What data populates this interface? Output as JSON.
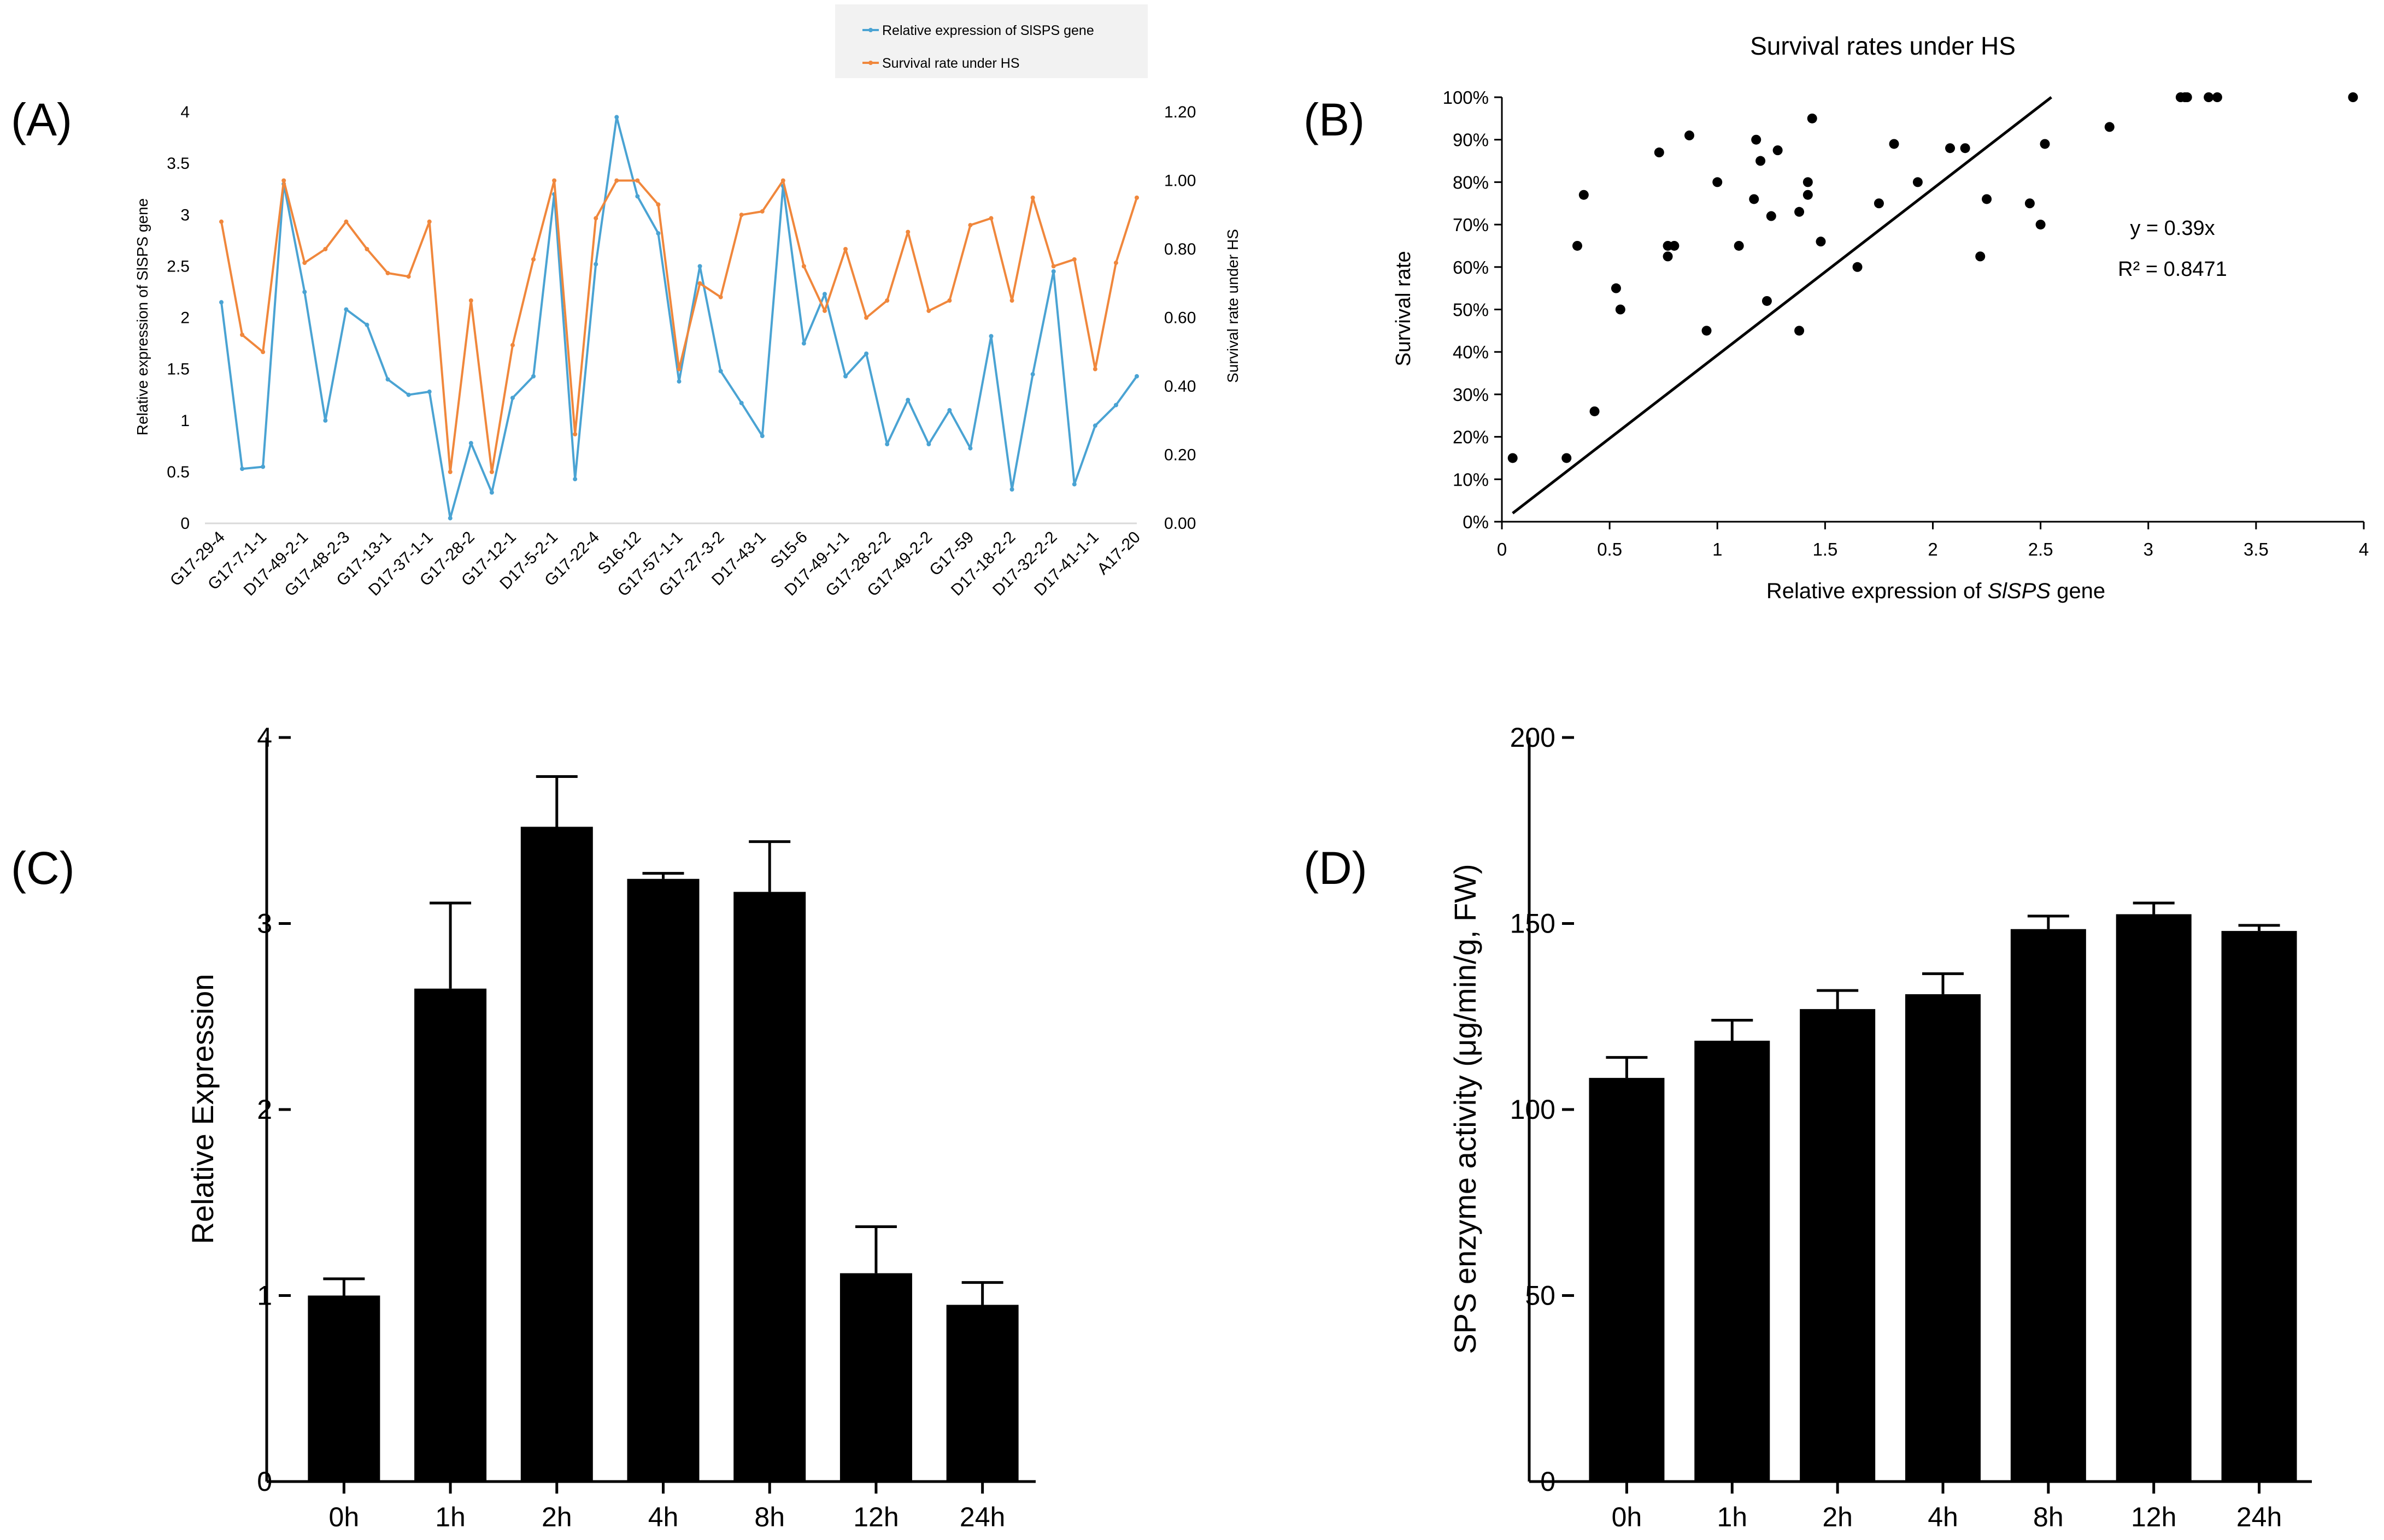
{
  "chart_data": [
    {
      "panel": "(A)",
      "type": "line",
      "title": "",
      "ylabel_left": "Relative expression of SlSPS gene",
      "ylabel_right": "Survival rate under HS",
      "ylim_left": [
        0,
        4
      ],
      "ylim_right": [
        0,
        1.2
      ],
      "yticks_left": [
        0,
        0.5,
        1,
        1.5,
        2,
        2.5,
        3,
        3.5,
        4
      ],
      "yticks_right": [
        "0.00",
        "0.20",
        "0.40",
        "0.60",
        "0.80",
        "1.00",
        "1.20"
      ],
      "xtick_labels": [
        "G17-29-4",
        "G17-7-1-1",
        "D17-49-2-1",
        "G17-48-2-3",
        "G17-13-1",
        "D17-37-1-1",
        "G17-28-2",
        "G17-12-1",
        "D17-5-2-1",
        "G17-22-4",
        "S16-12",
        "G17-57-1-1",
        "G17-27-3-2",
        "D17-43-1",
        "S15-6",
        "D17-49-1-1",
        "G17-28-2-2",
        "G17-49-2-2",
        "G17-59",
        "D17-18-2-2",
        "D17-32-2-2",
        "D17-41-1-1",
        "A17-20"
      ],
      "legend": [
        "Relative expression of SlSPS gene",
        "Survival rate under HS"
      ],
      "colors": {
        "expression": "#4aa3d3",
        "survival": "#f0873c"
      },
      "series": [
        {
          "name": "Relative expression of SlSPS gene",
          "axis": "left",
          "values": [
            2.15,
            0.53,
            0.55,
            3.3,
            2.25,
            1.0,
            2.08,
            1.93,
            1.4,
            1.25,
            1.28,
            0.05,
            0.78,
            0.3,
            1.22,
            1.43,
            3.2,
            0.43,
            2.52,
            3.95,
            3.18,
            2.82,
            1.38,
            2.5,
            1.48,
            1.17,
            0.85,
            3.28,
            1.75,
            2.23,
            1.43,
            1.65,
            0.77,
            1.2,
            0.77,
            1.1,
            0.73,
            1.82,
            0.33,
            1.45,
            2.45,
            0.38,
            0.95,
            1.15,
            1.43
          ]
        },
        {
          "name": "Survival rate under HS",
          "axis": "right",
          "values": [
            0.88,
            0.55,
            0.5,
            1.0,
            0.76,
            0.8,
            0.88,
            0.8,
            0.73,
            0.72,
            0.88,
            0.15,
            0.65,
            0.15,
            0.52,
            0.77,
            1.0,
            0.26,
            0.89,
            1.0,
            1.0,
            0.93,
            0.45,
            0.7,
            0.66,
            0.9,
            0.91,
            1.0,
            0.75,
            0.62,
            0.8,
            0.6,
            0.65,
            0.85,
            0.62,
            0.65,
            0.87,
            0.89,
            0.65,
            0.95,
            0.75,
            0.77,
            0.45,
            0.76,
            0.95
          ]
        }
      ]
    },
    {
      "panel": "(B)",
      "type": "scatter",
      "title": "Survival rates under HS",
      "xlabel_pre": "Relative expression of ",
      "xlabel_gene": "SlSPS",
      "xlabel_post": " gene",
      "ylabel": "Survival rate",
      "xlim": [
        0,
        4
      ],
      "ylim": [
        0,
        1
      ],
      "xticks": [
        "0",
        "0.5",
        "1",
        "1.5",
        "2",
        "2.5",
        "3",
        "3.5",
        "4"
      ],
      "yticks": [
        "0%",
        "10%",
        "20%",
        "30%",
        "40%",
        "50%",
        "60%",
        "70%",
        "80%",
        "90%",
        "100%"
      ],
      "points": [
        [
          0.05,
          0.15
        ],
        [
          0.3,
          0.15
        ],
        [
          0.35,
          0.65
        ],
        [
          0.38,
          0.77
        ],
        [
          0.43,
          0.26
        ],
        [
          0.53,
          0.55
        ],
        [
          0.55,
          0.5
        ],
        [
          0.73,
          0.87
        ],
        [
          0.77,
          0.625
        ],
        [
          0.77,
          0.65
        ],
        [
          0.8,
          0.65
        ],
        [
          0.87,
          0.91
        ],
        [
          0.95,
          0.45
        ],
        [
          1.0,
          0.8
        ],
        [
          1.1,
          0.65
        ],
        [
          1.17,
          0.76
        ],
        [
          1.18,
          0.9
        ],
        [
          1.2,
          0.85
        ],
        [
          1.23,
          0.52
        ],
        [
          1.25,
          0.72
        ],
        [
          1.28,
          0.875
        ],
        [
          1.38,
          0.45
        ],
        [
          1.38,
          0.73
        ],
        [
          1.42,
          0.77
        ],
        [
          1.42,
          0.8
        ],
        [
          1.44,
          0.95
        ],
        [
          1.48,
          0.66
        ],
        [
          1.65,
          0.6
        ],
        [
          1.75,
          0.75
        ],
        [
          1.82,
          0.89
        ],
        [
          1.93,
          0.8
        ],
        [
          2.08,
          0.88
        ],
        [
          2.15,
          0.88
        ],
        [
          2.22,
          0.625
        ],
        [
          2.25,
          0.76
        ],
        [
          2.45,
          0.75
        ],
        [
          2.5,
          0.7
        ],
        [
          2.52,
          0.89
        ],
        [
          2.82,
          0.93
        ],
        [
          3.15,
          1.0
        ],
        [
          3.17,
          1.0
        ],
        [
          3.18,
          1.0
        ],
        [
          3.28,
          1.0
        ],
        [
          3.32,
          1.0
        ],
        [
          3.95,
          1.0
        ]
      ],
      "trendline": {
        "equation": "y = 0.39x",
        "r2": "R² = 0.8471",
        "x_range": [
          0.05,
          2.55
        ],
        "slope": 0.39,
        "intercept": 0.0
      }
    },
    {
      "panel": "(C)",
      "type": "bar",
      "ylabel": "Relative Expression",
      "categories": [
        "0h",
        "1h",
        "2h",
        "4h",
        "8h",
        "12h",
        "24h"
      ],
      "values": [
        1.0,
        2.65,
        3.52,
        3.24,
        3.17,
        1.12,
        0.95
      ],
      "errors": [
        0.09,
        0.46,
        0.27,
        0.03,
        0.27,
        0.25,
        0.12
      ],
      "ylim": [
        0,
        4
      ],
      "yticks": [
        "0",
        "1",
        "2",
        "3",
        "4"
      ]
    },
    {
      "panel": "(D)",
      "type": "bar",
      "ylabel": "SPS enzyme activity  (μg/min/g, FW)",
      "categories": [
        "0h",
        "1h",
        "2h",
        "4h",
        "8h",
        "12h",
        "24h"
      ],
      "values": [
        108.5,
        118.5,
        127.0,
        131.0,
        148.5,
        152.5,
        148.0
      ],
      "errors": [
        5.5,
        5.5,
        5.0,
        5.5,
        3.5,
        3.0,
        1.5
      ],
      "ylim": [
        0,
        200
      ],
      "yticks": [
        "0",
        "50",
        "100",
        "150",
        "200"
      ]
    }
  ]
}
